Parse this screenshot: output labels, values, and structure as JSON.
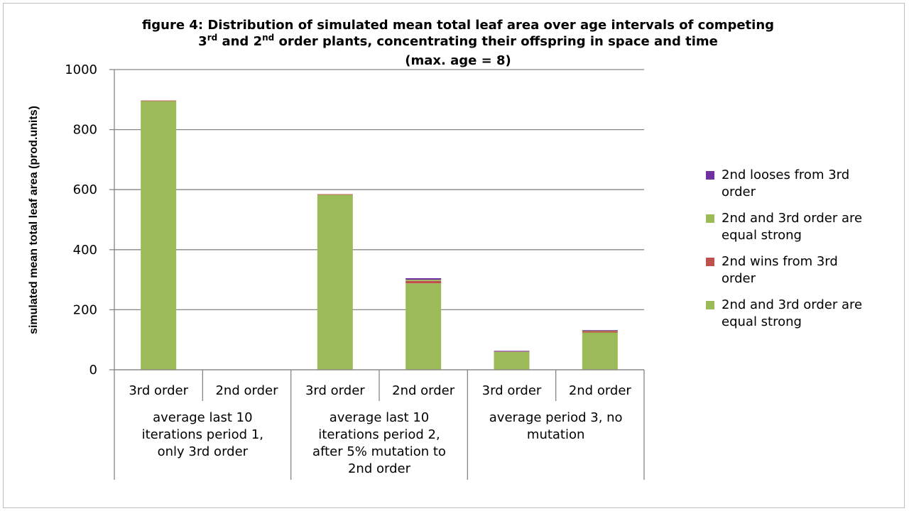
{
  "chart_data": {
    "type": "bar",
    "stacked": true,
    "title_parts": {
      "line1": "figure 4: Distribution  of simulated mean total leaf  area over age intervals of competing",
      "line2_a": "3",
      "line2_a_sup": "rd",
      "line2_b": " and 2",
      "line2_b_sup": "nd",
      "line2_c": " order plants, concentrating their offspring in space and time",
      "line3": "(max. age = 8)"
    },
    "ylabel": "simulated mean total leaf area (prod.units)",
    "ylim": [
      0,
      1000
    ],
    "yticks": [
      0,
      200,
      400,
      600,
      800,
      1000
    ],
    "grid": true,
    "legend_position": "right",
    "groups": [
      {
        "label": [
          "average last 10",
          "iterations period 1,",
          "only 3rd order"
        ],
        "categories": [
          "3rd order",
          "2nd order"
        ]
      },
      {
        "label": [
          "average last 10",
          "iterations period  2,",
          "after 5% mutation to",
          "2nd order"
        ],
        "categories": [
          "3rd order",
          "2nd order"
        ]
      },
      {
        "label": [
          "average period 3, no",
          "mutation"
        ],
        "categories": [
          "3rd order",
          "2nd order"
        ]
      }
    ],
    "categories": [
      "3rd order",
      "2nd order",
      "3rd order",
      "2nd order",
      "3rd order",
      "2nd order"
    ],
    "series": [
      {
        "name": "2nd and 3rd order are equal strong",
        "color": "#9bbb59",
        "values": [
          895,
          0,
          583,
          288,
          60,
          124
        ]
      },
      {
        "name": "2nd wins from 3rd order",
        "color": "#c0504d",
        "values": [
          2,
          0,
          2,
          8,
          1,
          5
        ]
      },
      {
        "name": "2nd and 3rd order are equal strong",
        "color": "#9bbb59",
        "values": [
          0,
          0,
          0,
          4,
          0,
          1
        ]
      },
      {
        "name": "2nd looses from 3rd order",
        "color": "#7030a0",
        "values": [
          0,
          0,
          0,
          5,
          2,
          2
        ]
      }
    ],
    "legend": [
      {
        "lines": [
          "2nd looses from 3rd",
          "order"
        ],
        "color": "#7030a0"
      },
      {
        "lines": [
          "2nd and 3rd order are",
          "equal strong"
        ],
        "color": "#9bbb59"
      },
      {
        "lines": [
          "2nd wins from 3rd",
          "order"
        ],
        "color": "#c0504d"
      },
      {
        "lines": [
          "2nd and 3rd order are",
          "equal strong"
        ],
        "color": "#9bbb59"
      }
    ]
  }
}
